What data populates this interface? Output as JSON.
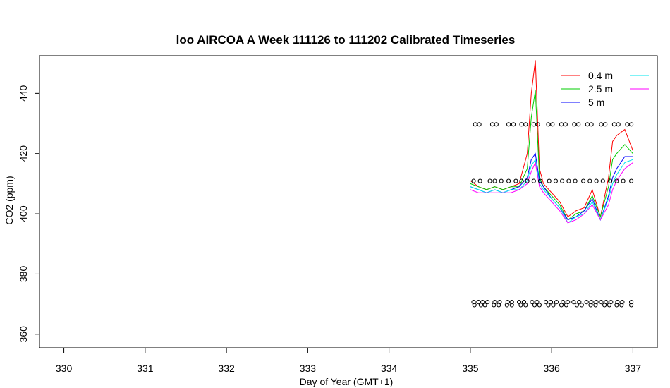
{
  "chart_data": {
    "type": "line",
    "title": "loo AIRCOA A  Week 111126 to 111202  Calibrated Timeseries",
    "xlabel": "Day of Year (GMT+1)",
    "ylabel": "CO2 (ppm)",
    "xlim": [
      329.7,
      337.3
    ],
    "ylim": [
      355.5,
      452.5
    ],
    "x_ticks": [
      330,
      331,
      332,
      333,
      334,
      335,
      336,
      337
    ],
    "y_ticks": [
      360,
      380,
      400,
      420,
      440
    ],
    "grid": false,
    "legend_position": "top-right",
    "colors": {
      "0.4 m": "#ff0000",
      "2.5 m": "#00cc00",
      "5 m": "#0000ff",
      "cyan": "#00e5ee",
      "magenta": "#ff00ff"
    },
    "legend": [
      {
        "label": "0.4 m",
        "color": "#ff0000"
      },
      {
        "label": "2.5 m",
        "color": "#00cc00"
      },
      {
        "label": "5 m",
        "color": "#0000ff"
      },
      {
        "label": "",
        "color": "#00e5ee"
      },
      {
        "label": "",
        "color": "#ff00ff"
      }
    ],
    "x": [
      335.0,
      335.1,
      335.2,
      335.3,
      335.4,
      335.5,
      335.6,
      335.7,
      335.75,
      335.8,
      335.85,
      335.9,
      336.0,
      336.1,
      336.2,
      336.3,
      336.4,
      336.5,
      336.6,
      336.7,
      336.75,
      336.8,
      336.9,
      337.0
    ],
    "series": [
      {
        "name": "0.4 m",
        "color": "#ff0000",
        "values": [
          411,
          409,
          408,
          409,
          408,
          409,
          410,
          420,
          440,
          451,
          415,
          410,
          407,
          404,
          399,
          401,
          402,
          408,
          399,
          412,
          424,
          426,
          428,
          421
        ]
      },
      {
        "name": "2.5 m",
        "color": "#00cc00",
        "values": [
          410,
          409,
          408,
          409,
          408,
          409,
          409,
          415,
          432,
          441,
          412,
          409,
          406,
          403,
          398,
          400,
          401,
          406,
          399,
          409,
          418,
          420,
          423,
          420
        ]
      },
      {
        "name": "5 m",
        "color": "#0000ff",
        "values": [
          409,
          408,
          407,
          408,
          407,
          408,
          409,
          412,
          418,
          420,
          411,
          409,
          405,
          402,
          398,
          399,
          401,
          405,
          398,
          406,
          412,
          415,
          419,
          419
        ]
      },
      {
        "name": "",
        "color": "#00e5ee",
        "values": [
          409,
          408,
          407,
          408,
          407,
          408,
          408,
          411,
          416,
          418,
          410,
          408,
          405,
          402,
          397,
          399,
          400,
          404,
          398,
          405,
          410,
          413,
          417,
          418
        ]
      },
      {
        "name": "",
        "color": "#ff00ff",
        "values": [
          408,
          407,
          407,
          407,
          407,
          407,
          408,
          410,
          414,
          417,
          409,
          407,
          404,
          401,
          397,
          398,
          400,
          403,
          398,
          403,
          408,
          411,
          415,
          417
        ]
      }
    ],
    "markers": [
      {
        "y": 429.7,
        "x": [
          335.06,
          335.11,
          335.27,
          335.32,
          335.47,
          335.53,
          335.63,
          335.68,
          335.78,
          335.83,
          335.96,
          336.01,
          336.12,
          336.17,
          336.28,
          336.33,
          336.44,
          336.49,
          336.61,
          336.66,
          336.77,
          336.82,
          336.93,
          336.98
        ]
      },
      {
        "y": 410.9,
        "x": [
          335.04,
          335.12,
          335.24,
          335.3,
          335.38,
          335.47,
          335.56,
          335.63,
          335.7,
          335.78,
          335.86,
          335.97,
          336.05,
          336.13,
          336.21,
          336.29,
          336.39,
          336.47,
          336.55,
          336.63,
          336.72,
          336.8,
          336.88,
          336.98
        ]
      },
      {
        "y": 370.7,
        "x": [
          335.04,
          335.1,
          335.15,
          335.21,
          335.3,
          335.36,
          335.46,
          335.51,
          335.6,
          335.66,
          335.76,
          335.82,
          335.93,
          335.99,
          336.06,
          336.14,
          336.2,
          336.27,
          336.34,
          336.43,
          336.49,
          336.55,
          336.61,
          336.67,
          336.73,
          336.81,
          336.87,
          336.98
        ]
      },
      {
        "y": 369.7,
        "x": [
          335.05,
          335.13,
          335.18,
          335.29,
          335.35,
          335.45,
          335.51,
          335.62,
          335.68,
          335.79,
          335.85,
          335.96,
          336.02,
          336.12,
          336.18,
          336.31,
          336.37,
          336.48,
          336.54,
          336.65,
          336.71,
          336.8,
          336.86,
          336.98
        ]
      }
    ]
  }
}
